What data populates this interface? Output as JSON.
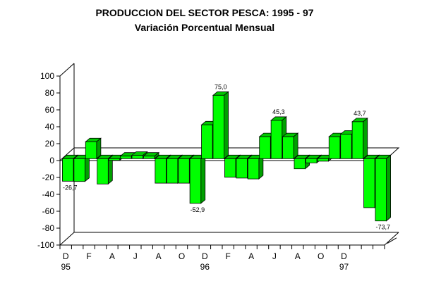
{
  "chart_data": {
    "type": "bar",
    "title": "PRODUCCION DEL SECTOR PESCA: 1995 - 97",
    "subtitle": "Variación Porcentual Mensual",
    "ylim": [
      -100,
      100
    ],
    "yticks": [
      "100",
      "80",
      "60",
      "40",
      "20",
      "0",
      "-20",
      "-40",
      "-60",
      "-80",
      "-100"
    ],
    "xtick_labels": [
      {
        "label": "D",
        "sub": "95"
      },
      {
        "label": "F",
        "sub": ""
      },
      {
        "label": "A",
        "sub": ""
      },
      {
        "label": "J",
        "sub": ""
      },
      {
        "label": "A",
        "sub": ""
      },
      {
        "label": "O",
        "sub": ""
      },
      {
        "label": "D",
        "sub": "96"
      },
      {
        "label": "F",
        "sub": ""
      },
      {
        "label": "A",
        "sub": ""
      },
      {
        "label": "J",
        "sub": ""
      },
      {
        "label": "A",
        "sub": ""
      },
      {
        "label": "O",
        "sub": ""
      },
      {
        "label": "D",
        "sub": "97"
      }
    ],
    "values": [
      -26.7,
      -27,
      20,
      -30,
      -2,
      3,
      4,
      3,
      -29,
      -29,
      -29,
      -52.9,
      40,
      75,
      -22,
      -23,
      -24,
      26,
      45.3,
      26,
      -12,
      -5,
      -3,
      26,
      29,
      43.7,
      -58,
      -73.7
    ],
    "data_labels": [
      {
        "index": 0,
        "text": "-26,7"
      },
      {
        "index": 11,
        "text": "-52,9"
      },
      {
        "index": 13,
        "text": "75,0"
      },
      {
        "index": 18,
        "text": "45,3"
      },
      {
        "index": 25,
        "text": "43,7"
      },
      {
        "index": 27,
        "text": "-73,7"
      }
    ],
    "colors": {
      "bar_front": "#00ff00",
      "bar_side": "#00a000",
      "bar_top": "#00c800"
    },
    "grid": false
  }
}
